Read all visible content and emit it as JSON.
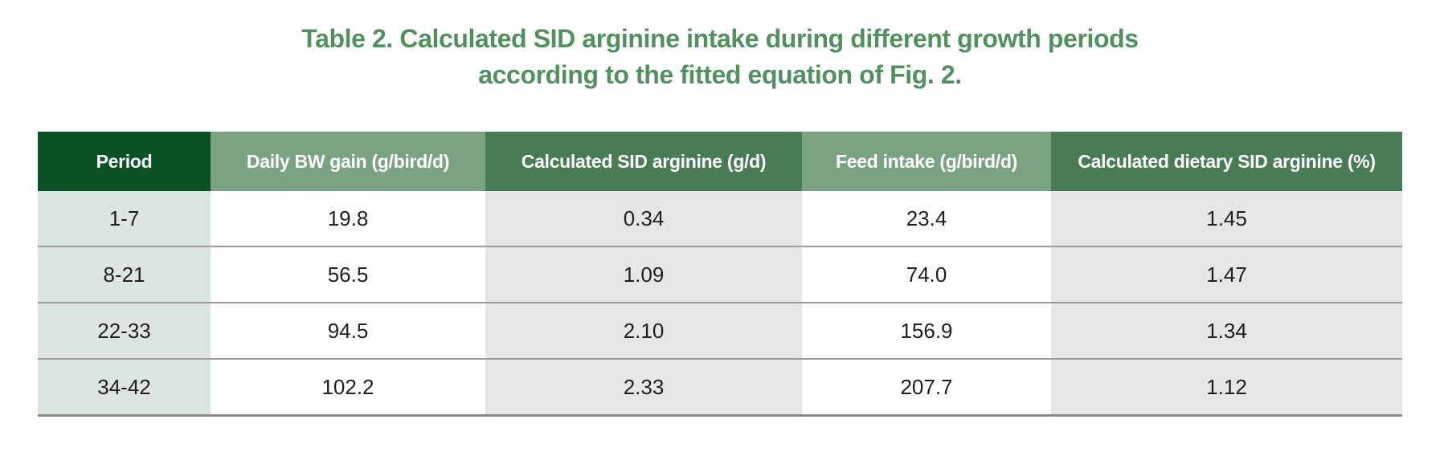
{
  "title": {
    "line1": "Table 2. Calculated SID arginine intake during different growth periods",
    "line2": "according to the fitted equation of Fig. 2."
  },
  "colors": {
    "title_green": "#53905f",
    "header_dark_green": "#0a5226",
    "header_sage_green": "#7aa383",
    "header_medium_green": "#497c54",
    "cell_light_green": "#dce6dd",
    "cell_white": "#ffffff",
    "cell_light_gray": "#e5e6e6",
    "header_text": "#ffffff",
    "body_text": "#1e1e1e",
    "row_divider_gray": "#9b9b9b",
    "bottom_border_gray": "#8a8a8a"
  },
  "table": {
    "columns": [
      {
        "label": "Period",
        "header_bg": "#0a5226",
        "body_bg": "#dce6dd"
      },
      {
        "label": "Daily BW gain (g/bird/d)",
        "header_bg": "#7aa383",
        "body_bg": "#ffffff"
      },
      {
        "label": "Calculated SID arginine (g/d)",
        "header_bg": "#497c54",
        "body_bg": "#e5e6e6"
      },
      {
        "label": "Feed intake (g/bird/d)",
        "header_bg": "#7aa383",
        "body_bg": "#ffffff"
      },
      {
        "label": "Calculated dietary SID arginine (%)",
        "header_bg": "#497c54",
        "body_bg": "#e5e6e6"
      }
    ],
    "rows": [
      [
        "1-7",
        "19.8",
        "0.34",
        "23.4",
        "1.45"
      ],
      [
        "8-21",
        "56.5",
        "1.09",
        "74.0",
        "1.47"
      ],
      [
        "22-33",
        "94.5",
        "2.10",
        "156.9",
        "1.34"
      ],
      [
        "34-42",
        "102.2",
        "2.33",
        "207.7",
        "1.12"
      ]
    ]
  },
  "chart_data": {
    "type": "table",
    "title": "Table 2. Calculated SID arginine intake during different growth periods according to the fitted equation of Fig. 2.",
    "columns": [
      "Period",
      "Daily BW gain (g/bird/d)",
      "Calculated SID arginine (g/d)",
      "Feed intake (g/bird/d)",
      "Calculated dietary SID arginine (%)"
    ],
    "rows": [
      [
        "1-7",
        19.8,
        0.34,
        23.4,
        1.45
      ],
      [
        "8-21",
        56.5,
        1.09,
        74.0,
        1.47
      ],
      [
        "22-33",
        94.5,
        2.1,
        156.9,
        1.34
      ],
      [
        "34-42",
        102.2,
        2.33,
        207.7,
        1.12
      ]
    ]
  }
}
